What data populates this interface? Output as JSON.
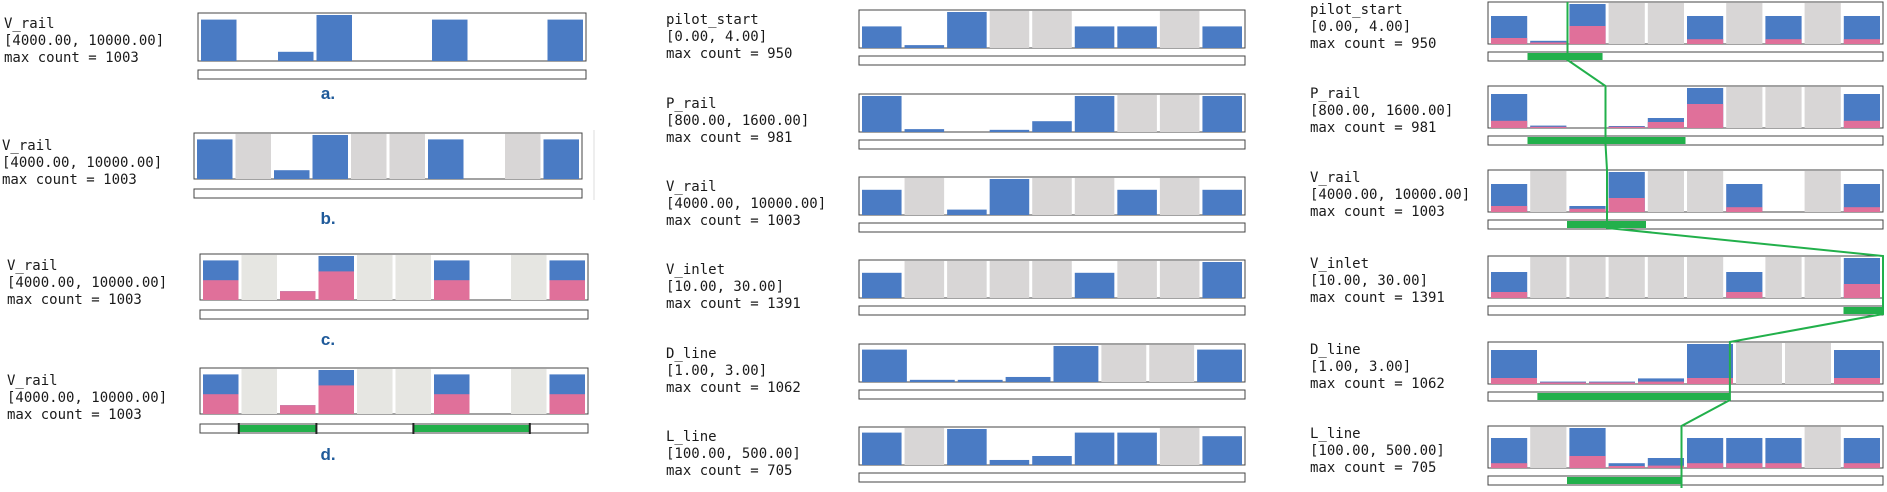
{
  "colors": {
    "blue": "#4a7bc4",
    "pink": "#e0709a",
    "grey": "#d8d6d6",
    "lightgrey": "#e6e6e2",
    "green": "#22b04b",
    "frame": "#444444"
  },
  "column_a": {
    "name": "V_rail",
    "range": "[4000.00, 10000.00]",
    "max": "max count = 1003",
    "panels": [
      {
        "caption": "a.",
        "bars": [
          0.9,
          0,
          0.2,
          1,
          0,
          0,
          0.9,
          0,
          0,
          0.9
        ],
        "pink": [
          0,
          0,
          0,
          0,
          0,
          0,
          0,
          0,
          0,
          0
        ],
        "shaded": [],
        "slider": []
      },
      {
        "caption": "b.",
        "bars": [
          0.9,
          0,
          0.2,
          1,
          0,
          0,
          0.9,
          0,
          0,
          0.9
        ],
        "pink": [
          0,
          0,
          0,
          0,
          0,
          0,
          0,
          0,
          0,
          0
        ],
        "shaded": [
          1,
          4,
          5,
          8
        ],
        "slider": []
      },
      {
        "caption": "c.",
        "bars": [
          0.9,
          0,
          0.2,
          1,
          0,
          0,
          0.9,
          0,
          0,
          0.9
        ],
        "pink": [
          0.45,
          0,
          0.2,
          0.65,
          0,
          0,
          0.45,
          0,
          0,
          0.45
        ],
        "shaded": [
          1,
          4,
          5,
          8
        ],
        "slider": []
      },
      {
        "caption": "d.",
        "bars": [
          0.9,
          0,
          0.2,
          1,
          0,
          0,
          0.9,
          0,
          0,
          0.9
        ],
        "pink": [
          0.45,
          0,
          0.2,
          0.65,
          0,
          0,
          0.45,
          0,
          0,
          0.45
        ],
        "shaded": [
          1,
          4,
          5,
          8
        ],
        "slider": [
          [
            1,
            3
          ],
          [
            5.5,
            8.5
          ]
        ]
      }
    ]
  },
  "chart_data": [
    {
      "type": "bar",
      "name": "middle-column",
      "variables": [
        {
          "name": "pilot_start",
          "range": "[0.00, 4.00]",
          "max": "max count = 950",
          "bars": [
            0.6,
            0.08,
            1,
            0,
            0,
            0.6,
            0.6,
            0,
            0.6
          ],
          "shaded": [
            3,
            4,
            7
          ]
        },
        {
          "name": "P_rail",
          "range": "[800.00, 1600.00]",
          "max": "max count = 981",
          "bars": [
            1,
            0.08,
            0,
            0.06,
            0.3,
            1,
            0,
            0,
            1
          ],
          "shaded": [
            6,
            7
          ]
        },
        {
          "name": "V_rail",
          "range": "[4000.00, 10000.00]",
          "max": "max count = 1003",
          "bars": [
            0.7,
            0,
            0.15,
            1,
            0,
            0,
            0.7,
            0,
            0.7
          ],
          "shaded": [
            1,
            4,
            5,
            7
          ]
        },
        {
          "name": "V_inlet",
          "range": "[10.00, 30.00]",
          "max": "max count = 1391",
          "bars": [
            0.7,
            0,
            0,
            0,
            0,
            0.7,
            0,
            0,
            1
          ],
          "shaded": [
            1,
            2,
            3,
            4,
            6,
            7
          ]
        },
        {
          "name": "D_line",
          "range": "[1.00, 3.00]",
          "max": "max count = 1062",
          "bars": [
            0.9,
            0.06,
            0.06,
            0.14,
            1,
            0,
            0,
            0.9
          ],
          "shaded": [
            5,
            6
          ]
        },
        {
          "name": "L_line",
          "range": "[100.00, 500.00]",
          "max": "max count = 705",
          "bars": [
            0.9,
            0,
            1,
            0.14,
            0.25,
            0.9,
            0.9,
            0,
            0.8
          ],
          "shaded": [
            1,
            7
          ]
        }
      ]
    },
    {
      "type": "bar",
      "name": "right-column",
      "variables": [
        {
          "name": "pilot_start",
          "range": "[0.00, 4.00]",
          "max": "max count = 950",
          "bars": [
            0.7,
            0.08,
            1,
            0,
            0,
            0.7,
            0,
            0.7,
            0,
            0.7
          ],
          "pink": [
            0.15,
            0.04,
            0.45,
            0,
            0,
            0.12,
            0,
            0.12,
            0,
            0.12
          ],
          "shaded": [
            3,
            4,
            6,
            8
          ],
          "slider": [
            1.0,
            2.9
          ]
        },
        {
          "name": "P_rail",
          "range": "[800.00, 1600.00]",
          "max": "max count = 981",
          "bars": [
            0.85,
            0.06,
            0,
            0.05,
            0.25,
            1,
            0,
            0,
            0,
            0.85
          ],
          "pink": [
            0.18,
            0.03,
            0,
            0.03,
            0.15,
            0.6,
            0,
            0,
            0,
            0.18
          ],
          "shaded": [
            6,
            7,
            8
          ],
          "slider": [
            1.0,
            5.0
          ]
        },
        {
          "name": "V_rail",
          "range": "[4000.00, 10000.00]",
          "max": "max count = 1003",
          "bars": [
            0.7,
            0,
            0.15,
            1,
            0,
            0,
            0.7,
            0,
            0,
            0.7
          ],
          "pink": [
            0.15,
            0,
            0.08,
            0.35,
            0,
            0,
            0.12,
            0,
            0,
            0.12
          ],
          "shaded": [
            1,
            4,
            5,
            8
          ],
          "slider": [
            2.0,
            4.0
          ]
        },
        {
          "name": "V_inlet",
          "range": "[10.00, 30.00]",
          "max": "max count = 1391",
          "bars": [
            0.65,
            0,
            0,
            0,
            0,
            0,
            0.65,
            0,
            0,
            1
          ],
          "pink": [
            0.15,
            0,
            0,
            0,
            0,
            0,
            0.15,
            0,
            0,
            0.35
          ],
          "shaded": [
            1,
            2,
            3,
            4,
            5,
            7,
            8
          ],
          "slider": [
            9.0,
            10.0
          ]
        },
        {
          "name": "D_line",
          "range": "[1.00, 3.00]",
          "max": "max count = 1062",
          "bars": [
            0.85,
            0.06,
            0.06,
            0.14,
            1,
            0,
            0,
            0.85
          ],
          "pink": [
            0.15,
            0.04,
            0.04,
            0.06,
            0.15,
            0,
            0,
            0.15
          ],
          "shaded": [
            5,
            6
          ],
          "slider": [
            1.0,
            4.9
          ]
        },
        {
          "name": "L_line",
          "range": "[100.00, 500.00]",
          "max": "max count = 705",
          "bars": [
            0.75,
            0,
            1,
            0.12,
            0.25,
            0.75,
            0.75,
            0.75,
            0,
            0.75
          ],
          "pink": [
            0.12,
            0,
            0.3,
            0.05,
            0.06,
            0.12,
            0.12,
            0.12,
            0,
            0.12
          ],
          "shaded": [
            1,
            8
          ],
          "slider": [
            2.0,
            4.9
          ]
        }
      ],
      "connector_series": "green selection path linking slider ranges across rows"
    }
  ]
}
